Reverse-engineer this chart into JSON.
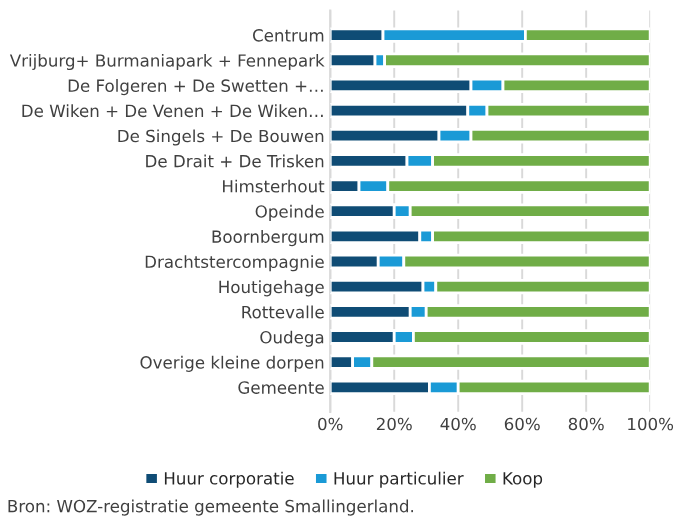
{
  "chart_data": {
    "type": "bar",
    "orientation": "horizontal",
    "stacked": true,
    "categories": [
      "Centrum",
      "Vrijburg+ Burmaniapark + Fennepark",
      "De Folgeren + De Swetten +…",
      "De Wiken + De Venen + De Wiken…",
      "De Singels + De Bouwen",
      "De Drait + De Trisken",
      "Himsterhout",
      "Opeinde",
      "Boornbergum",
      "Drachtstercompagnie",
      "Houtigehage",
      "Rottevalle",
      "Oudega",
      "Overige kleine dorpen",
      "Gemeente"
    ],
    "series": [
      {
        "name": "Huur corporatie",
        "color": "#0f4c75",
        "values": [
          16.5,
          14,
          44,
          43,
          34,
          24,
          9,
          20,
          28,
          15,
          29,
          25,
          20,
          7,
          31
        ]
      },
      {
        "name": "Huur particulier",
        "color": "#1a9ad6",
        "values": [
          44.5,
          3,
          10,
          6,
          10,
          8,
          9,
          5,
          4,
          8,
          4,
          5,
          6,
          6,
          9
        ]
      },
      {
        "name": "Koop",
        "color": "#70ad47",
        "values": [
          39,
          83,
          46,
          51,
          56,
          68,
          82,
          75,
          68,
          77,
          67,
          70,
          74,
          87,
          60
        ]
      }
    ],
    "xlim": [
      0,
      100
    ],
    "xticks": [
      {
        "value": 0,
        "label": "0%"
      },
      {
        "value": 20,
        "label": "20%"
      },
      {
        "value": 40,
        "label": "40%"
      },
      {
        "value": 60,
        "label": "60%"
      },
      {
        "value": 80,
        "label": "80%"
      },
      {
        "value": 100,
        "label": "100%"
      }
    ],
    "grid": "x",
    "legend": "bottom",
    "annotations": [
      "Bron: WOZ-registratie gemeente Smallingerland."
    ]
  }
}
